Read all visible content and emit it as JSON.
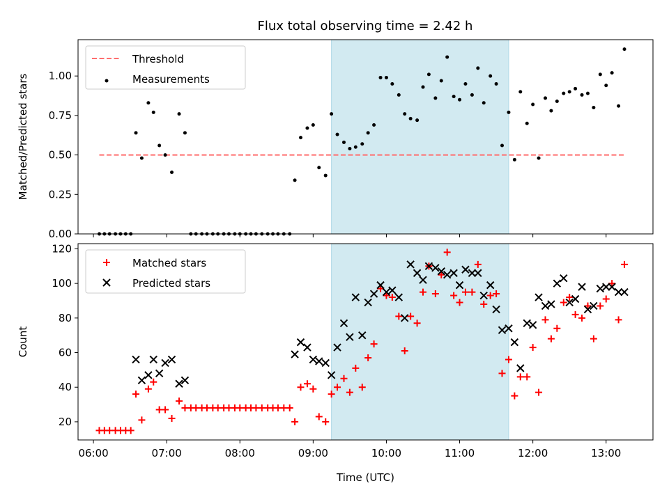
{
  "title": "Flux total observing time = 2.42 h",
  "colors": {
    "threshold": "#ff6e6e",
    "highlight": "#add8e6",
    "matched": "#ff0000",
    "predicted": "#000000",
    "measurement": "#000000"
  },
  "chart_data": [
    {
      "type": "scatter",
      "panel": "top",
      "ylabel": "Matched/Predicted stars",
      "ylim": [
        0,
        1.23
      ],
      "yticks": [
        0.0,
        0.25,
        0.5,
        0.75,
        1.0
      ],
      "ytick_labels": [
        "0.00",
        "0.25",
        "0.50",
        "0.75",
        "1.00"
      ],
      "xlim": [
        5.79,
        13.64
      ],
      "highlight_span": [
        9.25,
        11.67
      ],
      "legend_location": "upper left",
      "series": [
        {
          "name": "Threshold",
          "style": "dashed-line",
          "x": [
            6.08,
            13.25
          ],
          "y": [
            0.5,
            0.5
          ]
        },
        {
          "name": "Measurements",
          "style": "points",
          "x": [
            6.08,
            6.15,
            6.22,
            6.3,
            6.37,
            6.44,
            6.51,
            6.58,
            6.66,
            6.75,
            6.82,
            6.9,
            6.98,
            7.07,
            7.17,
            7.25,
            7.33,
            7.4,
            7.48,
            7.55,
            7.63,
            7.7,
            7.78,
            7.85,
            7.93,
            8.0,
            8.08,
            8.15,
            8.22,
            8.3,
            8.38,
            8.45,
            8.52,
            8.6,
            8.68,
            8.75,
            8.83,
            8.92,
            9.0,
            9.08,
            9.17,
            9.25,
            9.33,
            9.42,
            9.5,
            9.58,
            9.67,
            9.75,
            9.83,
            9.92,
            10.0,
            10.08,
            10.17,
            10.25,
            10.33,
            10.42,
            10.5,
            10.58,
            10.67,
            10.75,
            10.83,
            10.92,
            11.0,
            11.08,
            11.17,
            11.25,
            11.33,
            11.42,
            11.5,
            11.58,
            11.67,
            11.75,
            11.83,
            11.92,
            12.0,
            12.08,
            12.17,
            12.25,
            12.33,
            12.42,
            12.5,
            12.58,
            12.67,
            12.75,
            12.83,
            12.92,
            13.0,
            13.08,
            13.17,
            13.25
          ],
          "y": [
            0,
            0,
            0,
            0,
            0,
            0,
            0,
            0.64,
            0.48,
            0.83,
            0.77,
            0.56,
            0.5,
            0.39,
            0.76,
            0.64,
            0,
            0,
            0,
            0,
            0,
            0,
            0,
            0,
            0,
            0,
            0,
            0,
            0,
            0,
            0,
            0,
            0,
            0,
            0,
            0.34,
            0.61,
            0.67,
            0.69,
            0.42,
            0.37,
            0.76,
            0.63,
            0.58,
            0.54,
            0.55,
            0.57,
            0.64,
            0.69,
            0.99,
            0.99,
            0.95,
            0.88,
            0.76,
            0.73,
            0.72,
            0.93,
            1.01,
            0.86,
            0.97,
            1.12,
            0.87,
            0.85,
            0.95,
            0.88,
            1.05,
            0.83,
            1.0,
            0.95,
            0.56,
            0.77,
            0.47,
            0.9,
            0.7,
            0.82,
            0.48,
            0.86,
            0.78,
            0.84,
            0.89,
            0.9,
            0.92,
            0.88,
            0.89,
            0.8,
            1.01,
            0.94,
            1.02,
            0.81,
            1.17
          ]
        }
      ]
    },
    {
      "type": "scatter",
      "panel": "bottom",
      "xlabel": "Time (UTC)",
      "ylabel": "Count",
      "ylim": [
        9.5,
        123
      ],
      "yticks": [
        20,
        40,
        60,
        80,
        100,
        120
      ],
      "ytick_labels": [
        "20",
        "40",
        "60",
        "80",
        "100",
        "120"
      ],
      "xlim": [
        5.79,
        13.64
      ],
      "xticks": [
        6,
        7,
        8,
        9,
        10,
        11,
        12,
        13
      ],
      "xtick_labels": [
        "06:00",
        "07:00",
        "08:00",
        "09:00",
        "10:00",
        "11:00",
        "12:00",
        "13:00"
      ],
      "highlight_span": [
        9.25,
        11.67
      ],
      "legend_location": "upper left",
      "series": [
        {
          "name": "Matched stars",
          "marker": "plus",
          "x": [
            6.08,
            6.15,
            6.22,
            6.3,
            6.37,
            6.44,
            6.51,
            6.58,
            6.66,
            6.75,
            6.82,
            6.9,
            6.98,
            7.07,
            7.17,
            7.25,
            7.33,
            7.4,
            7.48,
            7.55,
            7.63,
            7.7,
            7.78,
            7.85,
            7.93,
            8.0,
            8.08,
            8.15,
            8.22,
            8.3,
            8.38,
            8.45,
            8.52,
            8.6,
            8.68,
            8.75,
            8.83,
            8.92,
            9.0,
            9.08,
            9.17,
            9.25,
            9.33,
            9.42,
            9.5,
            9.58,
            9.67,
            9.75,
            9.83,
            9.92,
            10.0,
            10.08,
            10.17,
            10.25,
            10.33,
            10.42,
            10.5,
            10.58,
            10.67,
            10.75,
            10.83,
            10.92,
            11.0,
            11.08,
            11.17,
            11.25,
            11.33,
            11.42,
            11.5,
            11.58,
            11.67,
            11.75,
            11.83,
            11.92,
            12.0,
            12.08,
            12.17,
            12.25,
            12.33,
            12.42,
            12.5,
            12.58,
            12.67,
            12.75,
            12.83,
            12.92,
            13.0,
            13.08,
            13.17,
            13.25
          ],
          "y": [
            15,
            15,
            15,
            15,
            15,
            15,
            15,
            36,
            21,
            39,
            43,
            27,
            27,
            22,
            32,
            28,
            28,
            28,
            28,
            28,
            28,
            28,
            28,
            28,
            28,
            28,
            28,
            28,
            28,
            28,
            28,
            28,
            28,
            28,
            28,
            20,
            40,
            42,
            39,
            23,
            20,
            36,
            40,
            45,
            37,
            51,
            40,
            57,
            65,
            97,
            93,
            92,
            81,
            61,
            81,
            77,
            95,
            110,
            94,
            105,
            118,
            93,
            89,
            95,
            95,
            111,
            88,
            93,
            94,
            48,
            56,
            35,
            46,
            46,
            63,
            37,
            79,
            68,
            74,
            89,
            92,
            82,
            80,
            87,
            68,
            87,
            91,
            100,
            79,
            111
          ]
        },
        {
          "name": "Predicted stars",
          "marker": "x",
          "x": [
            6.58,
            6.66,
            6.75,
            6.82,
            6.9,
            6.98,
            7.07,
            7.17,
            7.25,
            8.75,
            8.83,
            8.92,
            9.0,
            9.08,
            9.17,
            9.25,
            9.33,
            9.42,
            9.5,
            9.58,
            9.67,
            9.75,
            9.83,
            9.92,
            10.0,
            10.08,
            10.17,
            10.25,
            10.33,
            10.42,
            10.5,
            10.58,
            10.67,
            10.75,
            10.83,
            10.92,
            11.0,
            11.08,
            11.17,
            11.25,
            11.33,
            11.42,
            11.5,
            11.58,
            11.67,
            11.75,
            11.83,
            11.92,
            12.0,
            12.08,
            12.17,
            12.25,
            12.33,
            12.42,
            12.5,
            12.58,
            12.67,
            12.75,
            12.83,
            12.92,
            13.0,
            13.08,
            13.17,
            13.25
          ],
          "y": [
            56,
            44,
            47,
            56,
            48,
            54,
            56,
            42,
            44,
            59,
            66,
            63,
            56,
            55,
            54,
            47,
            63,
            77,
            69,
            92,
            70,
            89,
            94,
            99,
            95,
            96,
            92,
            80,
            111,
            106,
            102,
            110,
            109,
            107,
            105,
            106,
            99,
            108,
            106,
            106,
            93,
            99,
            85,
            73,
            74,
            66,
            51,
            77,
            76,
            92,
            87,
            88,
            100,
            103,
            89,
            91,
            98,
            85,
            87,
            97,
            98,
            98,
            95,
            95
          ]
        }
      ]
    }
  ]
}
